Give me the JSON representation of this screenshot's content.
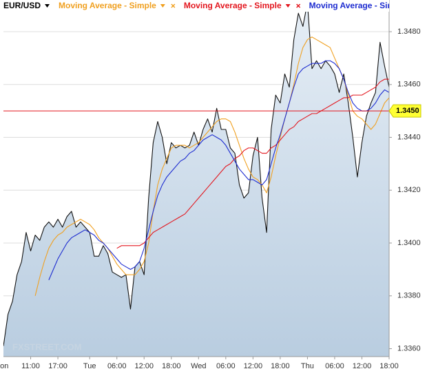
{
  "chart_data": {
    "type": "line",
    "x": [
      5,
      6,
      7,
      8,
      9,
      10,
      11,
      12,
      13,
      14,
      15,
      16,
      17,
      18,
      19,
      20,
      21,
      22,
      23,
      24,
      25,
      26,
      27,
      28,
      29,
      30,
      31,
      32,
      33,
      34,
      35,
      36,
      37,
      38,
      39,
      40,
      41,
      42,
      43,
      44,
      45,
      46,
      47,
      48,
      49,
      50,
      51,
      52,
      53,
      54,
      55,
      56,
      57,
      58,
      59,
      60,
      61,
      62,
      63,
      64,
      65,
      66,
      67,
      68,
      69,
      70,
      71,
      72,
      73,
      74,
      75,
      76,
      77,
      78,
      79,
      80,
      81,
      82,
      83,
      84,
      85,
      86,
      87,
      88,
      89,
      90
    ],
    "series": [
      {
        "name": "EUR/USD",
        "color": "#111111",
        "values": [
          1.3361,
          1.3373,
          1.3378,
          1.3388,
          1.3393,
          1.3404,
          1.3397,
          1.3403,
          1.3401,
          1.3406,
          1.3408,
          1.3406,
          1.3409,
          1.3406,
          1.341,
          1.3412,
          1.3406,
          1.3408,
          1.3406,
          1.3404,
          1.3395,
          1.3395,
          1.3399,
          1.3396,
          1.3389,
          1.3388,
          1.3387,
          1.3388,
          1.3375,
          1.3391,
          1.3393,
          1.3388,
          1.3417,
          1.3438,
          1.3446,
          1.344,
          1.343,
          1.3438,
          1.3436,
          1.3437,
          1.3436,
          1.3437,
          1.3442,
          1.3437,
          1.3443,
          1.3447,
          1.3442,
          1.3451,
          1.3443,
          1.3443,
          1.3436,
          1.3434,
          1.3422,
          1.3417,
          1.3419,
          1.3433,
          1.344,
          1.3417,
          1.3404,
          1.3443,
          1.3456,
          1.3453,
          1.3464,
          1.3459,
          1.3477,
          1.3487,
          1.3482,
          1.3491,
          1.3466,
          1.3469,
          1.3466,
          1.3469,
          1.3467,
          1.3464,
          1.3457,
          1.3464,
          1.3453,
          1.344,
          1.3425,
          1.3438,
          1.3448,
          1.3453,
          1.3457,
          1.3476,
          1.3467,
          1.3459
        ]
      },
      {
        "name": "Moving Average - Simple",
        "color": "#f0a020",
        "values": [
          null,
          null,
          null,
          null,
          null,
          null,
          null,
          1.338,
          1.3387,
          1.3393,
          1.3398,
          1.3401,
          1.3403,
          1.3404,
          1.3406,
          1.3407,
          1.3408,
          1.3409,
          1.3408,
          1.3407,
          1.3405,
          1.3402,
          1.34,
          1.3398,
          1.3395,
          1.3392,
          1.339,
          1.3388,
          1.3388,
          1.3388,
          1.339,
          1.3393,
          1.34,
          1.3412,
          1.3422,
          1.3428,
          1.3432,
          1.3436,
          1.3437,
          1.3437,
          1.3437,
          1.3436,
          1.3437,
          1.3438,
          1.344,
          1.3442,
          1.3444,
          1.3446,
          1.3447,
          1.3447,
          1.3446,
          1.3442,
          1.3437,
          1.3432,
          1.3428,
          1.3425,
          1.3424,
          1.3422,
          1.3419,
          1.3425,
          1.3433,
          1.344,
          1.3447,
          1.3453,
          1.346,
          1.3468,
          1.3474,
          1.3477,
          1.3478,
          1.3477,
          1.3476,
          1.3475,
          1.3474,
          1.347,
          1.3466,
          1.3462,
          1.3456,
          1.345,
          1.3448,
          1.3447,
          1.3445,
          1.3443,
          1.3445,
          1.3449,
          1.3453,
          1.3455
        ]
      },
      {
        "name": "Moving Average - Simple",
        "color": "#e3161e",
        "values": [
          null,
          null,
          null,
          null,
          null,
          null,
          null,
          null,
          null,
          null,
          null,
          null,
          null,
          null,
          null,
          null,
          null,
          null,
          null,
          null,
          null,
          null,
          null,
          null,
          null,
          1.3398,
          1.3399,
          1.3399,
          1.3399,
          1.3399,
          1.3399,
          1.34,
          1.3402,
          1.3404,
          1.3405,
          1.3406,
          1.3407,
          1.3408,
          1.3409,
          1.341,
          1.3411,
          1.3413,
          1.3415,
          1.3417,
          1.3419,
          1.3421,
          1.3423,
          1.3425,
          1.3427,
          1.3429,
          1.343,
          1.3432,
          1.3433,
          1.3435,
          1.3436,
          1.3436,
          1.3435,
          1.3434,
          1.3434,
          1.3436,
          1.3437,
          1.3439,
          1.3441,
          1.3443,
          1.3444,
          1.3446,
          1.3447,
          1.3448,
          1.3449,
          1.3449,
          1.345,
          1.3451,
          1.3452,
          1.3453,
          1.3454,
          1.3455,
          1.3455,
          1.3456,
          1.3456,
          1.3456,
          1.3457,
          1.3458,
          1.3459,
          1.3461,
          1.3462,
          1.3462
        ]
      },
      {
        "name": "Moving Average - Simple",
        "color": "#1c2bd0",
        "values": [
          null,
          null,
          null,
          null,
          null,
          null,
          null,
          null,
          null,
          null,
          1.3386,
          1.339,
          1.3394,
          1.3397,
          1.34,
          1.3402,
          1.3403,
          1.3404,
          1.3405,
          1.3404,
          1.3403,
          1.3401,
          1.34,
          1.3398,
          1.3396,
          1.3394,
          1.3392,
          1.3391,
          1.339,
          1.3391,
          1.3393,
          1.3398,
          1.3405,
          1.3412,
          1.3418,
          1.3422,
          1.3425,
          1.3427,
          1.3429,
          1.3431,
          1.3432,
          1.3434,
          1.3435,
          1.3437,
          1.3439,
          1.344,
          1.3441,
          1.344,
          1.3439,
          1.3437,
          1.3434,
          1.3431,
          1.3428,
          1.3426,
          1.3424,
          1.3424,
          1.3423,
          1.3422,
          1.3424,
          1.343,
          1.3436,
          1.3441,
          1.3447,
          1.3453,
          1.3459,
          1.3464,
          1.3466,
          1.3467,
          1.3468,
          1.3468,
          1.3468,
          1.3469,
          1.3469,
          1.3468,
          1.3466,
          1.3462,
          1.3457,
          1.3453,
          1.3451,
          1.345,
          1.345,
          1.3451,
          1.3453,
          1.3456,
          1.3458,
          1.3457
        ]
      }
    ],
    "xlim": [
      5,
      90
    ],
    "xticks": [
      {
        "value": 4.5,
        "label": "Mon"
      },
      {
        "value": 11,
        "label": "11:00"
      },
      {
        "value": 17,
        "label": "17:00"
      },
      {
        "value": 24,
        "label": "Tue"
      },
      {
        "value": 30,
        "label": "06:00"
      },
      {
        "value": 36,
        "label": "12:00"
      },
      {
        "value": 42,
        "label": "18:00"
      },
      {
        "value": 48,
        "label": "Wed"
      },
      {
        "value": 54,
        "label": "06:00"
      },
      {
        "value": 60,
        "label": "12:00"
      },
      {
        "value": 66,
        "label": "18:00"
      },
      {
        "value": 72,
        "label": "Thu"
      },
      {
        "value": 78,
        "label": "06:00"
      },
      {
        "value": 84,
        "label": "12:00"
      },
      {
        "value": 90,
        "label": "18:00"
      }
    ],
    "ylim": [
      1.3357,
      1.3492
    ],
    "yticks": [
      {
        "value": 1.336,
        "label": "1.3360"
      },
      {
        "value": 1.338,
        "label": "1.3380"
      },
      {
        "value": 1.34,
        "label": "1.3400"
      },
      {
        "value": 1.342,
        "label": "1.3420"
      },
      {
        "value": 1.344,
        "label": "1.3440"
      },
      {
        "value": 1.346,
        "label": "1.3460"
      },
      {
        "value": 1.348,
        "label": "1.3480"
      }
    ],
    "grid": true,
    "current_price": {
      "value": 1.345,
      "label": "1.3450"
    },
    "current_price_color": "#e3161e",
    "watermark": "FXSTREET.COM"
  }
}
